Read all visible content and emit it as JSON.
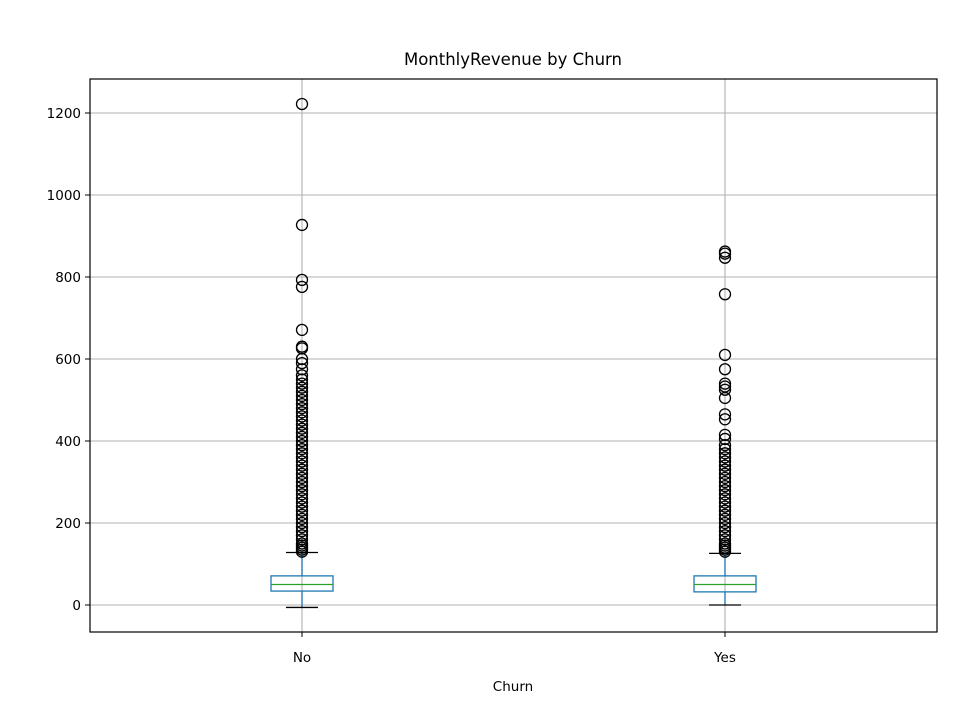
{
  "chart_data": {
    "type": "box",
    "title": "MonthlyRevenue by Churn",
    "xlabel": "Churn",
    "ylabel": "",
    "ylim": [
      -7,
      1280
    ],
    "yticks": [
      0,
      200,
      400,
      600,
      800,
      1000,
      1200
    ],
    "ytick_labels": [
      "0",
      "200",
      "400",
      "600",
      "800",
      "1000",
      "1200"
    ],
    "grid": true,
    "categories": [
      "No",
      "Yes"
    ],
    "boxes": [
      {
        "name": "No",
        "whisker_low": -6,
        "q1": 34,
        "median": 50,
        "q3": 71,
        "whisker_high": 128,
        "outliers": [
          1222,
          927,
          793,
          776,
          671,
          630,
          626,
          600,
          590,
          575,
          560,
          550,
          540,
          530,
          520,
          510,
          500,
          490,
          480,
          470,
          460,
          450,
          440,
          430,
          420,
          410,
          400,
          390,
          380,
          370,
          360,
          350,
          340,
          330,
          320,
          310,
          300,
          290,
          280,
          270,
          260,
          250,
          240,
          230,
          220,
          210,
          200,
          190,
          180,
          170,
          160,
          150,
          145,
          140,
          135,
          130
        ]
      },
      {
        "name": "Yes",
        "whisker_low": 0,
        "q1": 32,
        "median": 50,
        "q3": 71,
        "whisker_high": 126,
        "outliers": [
          862,
          857,
          847,
          758,
          610,
          575,
          540,
          533,
          525,
          505,
          465,
          453,
          415,
          405,
          390,
          380,
          370,
          360,
          350,
          340,
          330,
          320,
          310,
          300,
          290,
          280,
          270,
          260,
          250,
          240,
          230,
          220,
          210,
          200,
          190,
          180,
          170,
          160,
          150,
          145,
          140,
          135,
          130
        ]
      }
    ],
    "colors": {
      "box": "#1f77b4",
      "median": "#2ca02c",
      "whisker_cap": "#000000",
      "outlier_edge": "#000000",
      "grid": "#b0b0b0"
    }
  }
}
